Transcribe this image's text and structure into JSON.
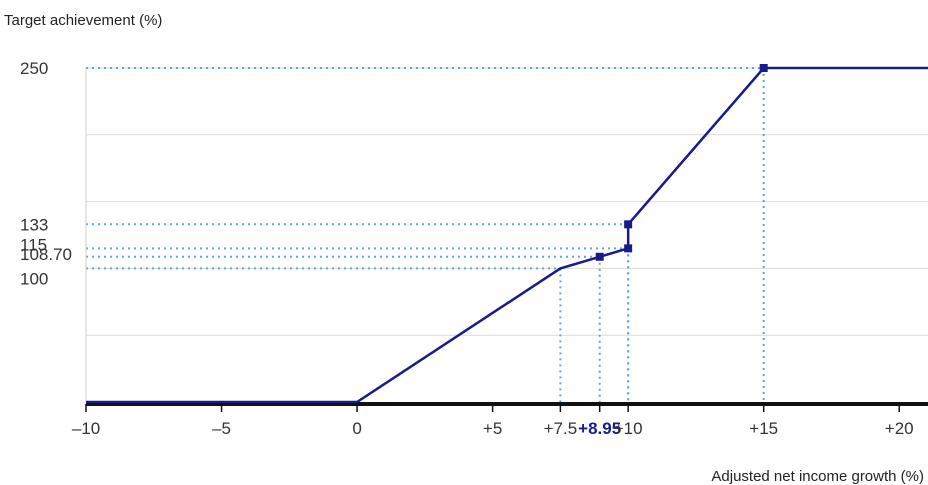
{
  "chart_data": {
    "type": "line",
    "ylabel": "Target achievement (%)",
    "xlabel": "Adjusted net income growth (%)",
    "xlim": [
      -10,
      22.5
    ],
    "ylim": [
      0,
      250
    ],
    "grid": true,
    "series": [
      {
        "points": [
          {
            "x": -10,
            "y": 0
          },
          {
            "x": 0,
            "y": 0
          },
          {
            "x": 7.5,
            "y": 100
          },
          {
            "x": 8.95,
            "y": 108.7
          },
          {
            "x": 10,
            "y": 115
          },
          {
            "x": 10,
            "y": 133
          },
          {
            "x": 15,
            "y": 250
          },
          {
            "x": 22.5,
            "y": 250
          }
        ],
        "markers_at": [
          3,
          4,
          5,
          6,
          7
        ]
      }
    ],
    "x_ticks": [
      {
        "value": -10,
        "label": "–10"
      },
      {
        "value": -5,
        "label": "–5"
      },
      {
        "value": 0,
        "label": "0"
      },
      {
        "value": 5,
        "label": "+5"
      },
      {
        "value": 7.5,
        "label": "+7.5"
      },
      {
        "value": 8.95,
        "label": "+8.95",
        "emphasis": true
      },
      {
        "value": 10,
        "label": "+10"
      },
      {
        "value": 15,
        "label": "+15"
      },
      {
        "value": 20,
        "label": "+20"
      }
    ],
    "y_ticks": [
      {
        "value": 250,
        "label": "250"
      },
      {
        "value": 133,
        "label": "133"
      },
      {
        "value": 115,
        "label": "115"
      },
      {
        "value": 108.7,
        "label": "108.70"
      },
      {
        "value": 100,
        "label": "100"
      }
    ],
    "grid_y": [
      50,
      100,
      150,
      200,
      250
    ],
    "guides": [
      {
        "x": 7.5,
        "y": 100
      },
      {
        "x": 8.95,
        "y": 108.7
      },
      {
        "x": 10,
        "y": 115
      },
      {
        "x": 10,
        "y": 133
      },
      {
        "x": 15,
        "y": 250
      }
    ],
    "colors": {
      "line": "#1a1a8c",
      "guide": "#5aa7e6",
      "grid": "#dcdcdc",
      "axis": "#111111",
      "emphasis_tick": "#1a1a8c"
    }
  }
}
